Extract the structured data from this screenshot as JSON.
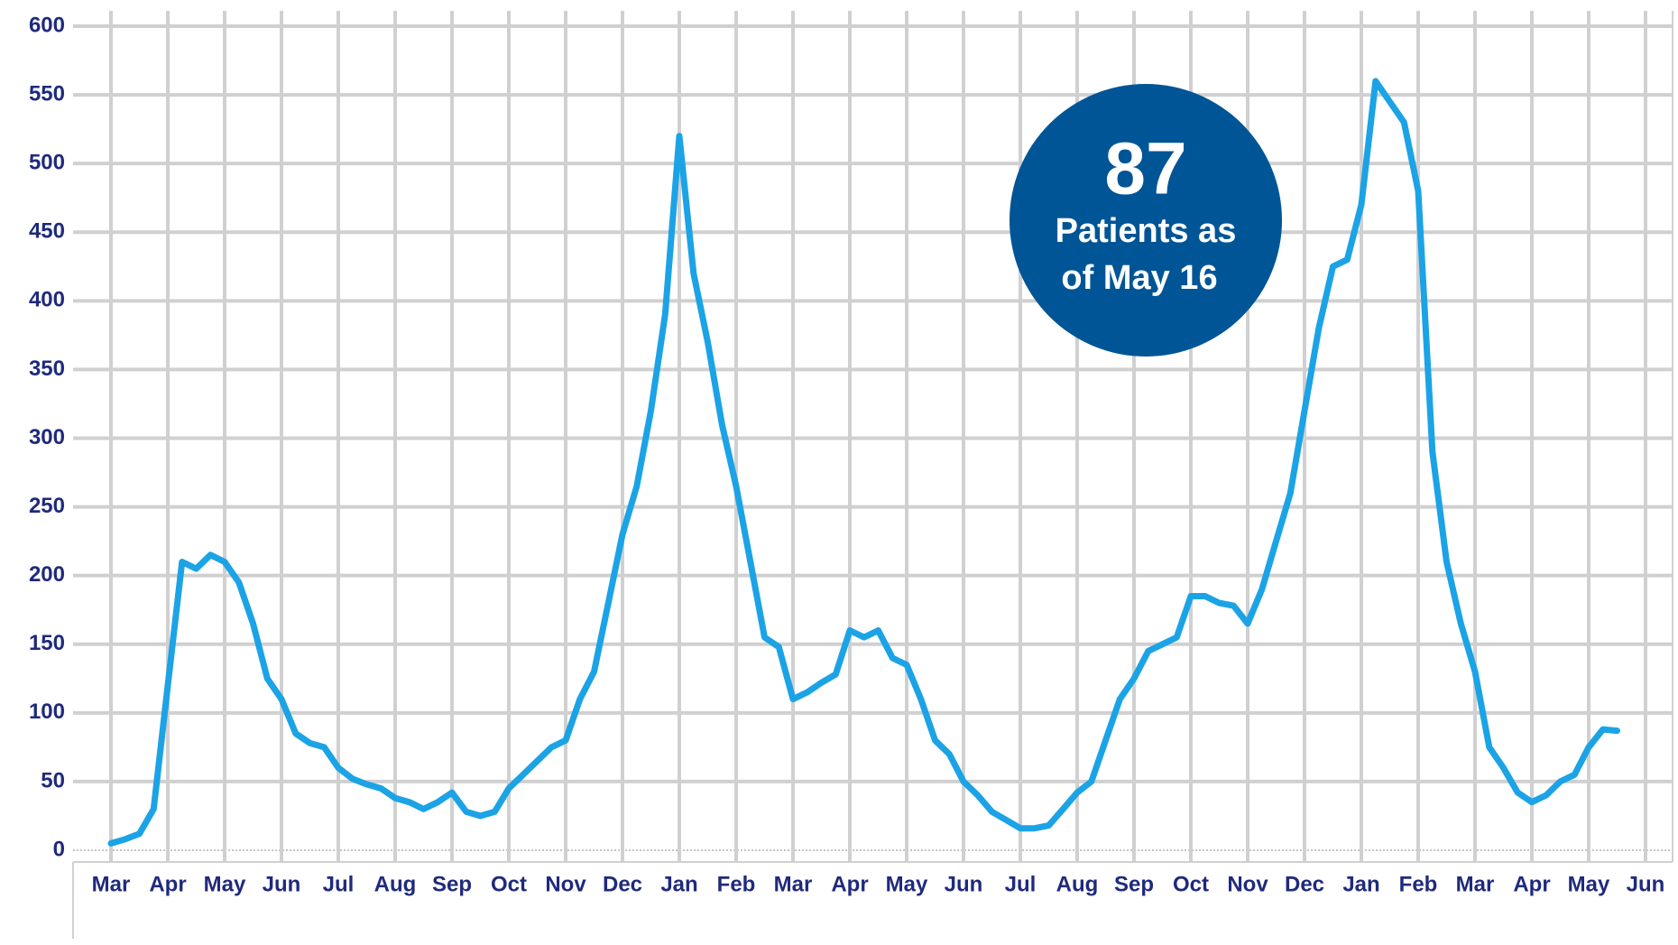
{
  "chart_data": {
    "type": "line",
    "categories": [
      "Mar",
      null,
      null,
      null,
      "Apr",
      null,
      null,
      null,
      "May",
      null,
      null,
      null,
      "Jun",
      null,
      null,
      null,
      "Jul",
      null,
      null,
      null,
      "Aug",
      null,
      null,
      null,
      "Sep",
      null,
      null,
      null,
      "Oct",
      null,
      null,
      null,
      "Nov",
      null,
      null,
      null,
      "Dec",
      null,
      null,
      null,
      "Jan",
      null,
      null,
      null,
      "Feb",
      null,
      null,
      null,
      "Mar",
      null,
      null,
      null,
      "Apr",
      null,
      null,
      null,
      "May",
      null,
      null,
      null,
      "Jun",
      null,
      null,
      null,
      "Jul",
      null,
      null,
      null,
      "Aug",
      null,
      null,
      null,
      "Sep",
      null,
      null,
      null,
      "Oct",
      null,
      null,
      null,
      "Nov",
      null,
      null,
      null,
      "Dec",
      null,
      null,
      null,
      "Jan",
      null,
      null,
      null,
      "Feb",
      null,
      null,
      null,
      "Mar",
      null,
      null,
      null,
      "Apr",
      null,
      null,
      null,
      "May",
      null,
      null,
      null,
      "Jun"
    ],
    "series": [
      {
        "color": "#1ba3e6",
        "values": [
          5,
          8,
          12,
          30,
          120,
          210,
          205,
          215,
          210,
          195,
          165,
          125,
          110,
          85,
          78,
          75,
          60,
          52,
          48,
          45,
          38,
          35,
          30,
          35,
          42,
          28,
          25,
          28,
          45,
          55,
          65,
          75,
          80,
          110,
          130,
          180,
          230,
          265,
          320,
          390,
          520,
          420,
          370,
          310,
          265,
          210,
          155,
          148,
          110,
          115,
          122,
          128,
          160,
          155,
          160,
          140,
          135,
          110,
          80,
          70,
          50,
          40,
          28,
          22,
          16,
          16,
          18,
          30,
          42,
          50,
          80,
          110,
          125,
          145,
          150,
          155,
          185,
          185,
          180,
          178,
          165,
          190,
          225,
          260,
          320,
          380,
          425,
          430,
          470,
          560,
          545,
          530,
          480,
          290,
          210,
          165,
          130,
          75,
          60,
          42,
          35,
          40,
          50,
          55,
          75,
          88,
          87,
          null,
          null
        ]
      }
    ],
    "ylim": [
      0,
      600
    ],
    "yticks": [
      0,
      50,
      100,
      150,
      200,
      250,
      300,
      350,
      400,
      450,
      500,
      550,
      600
    ],
    "grid": true,
    "annotations": [
      "87",
      "Patients as",
      "of May 16"
    ]
  }
}
